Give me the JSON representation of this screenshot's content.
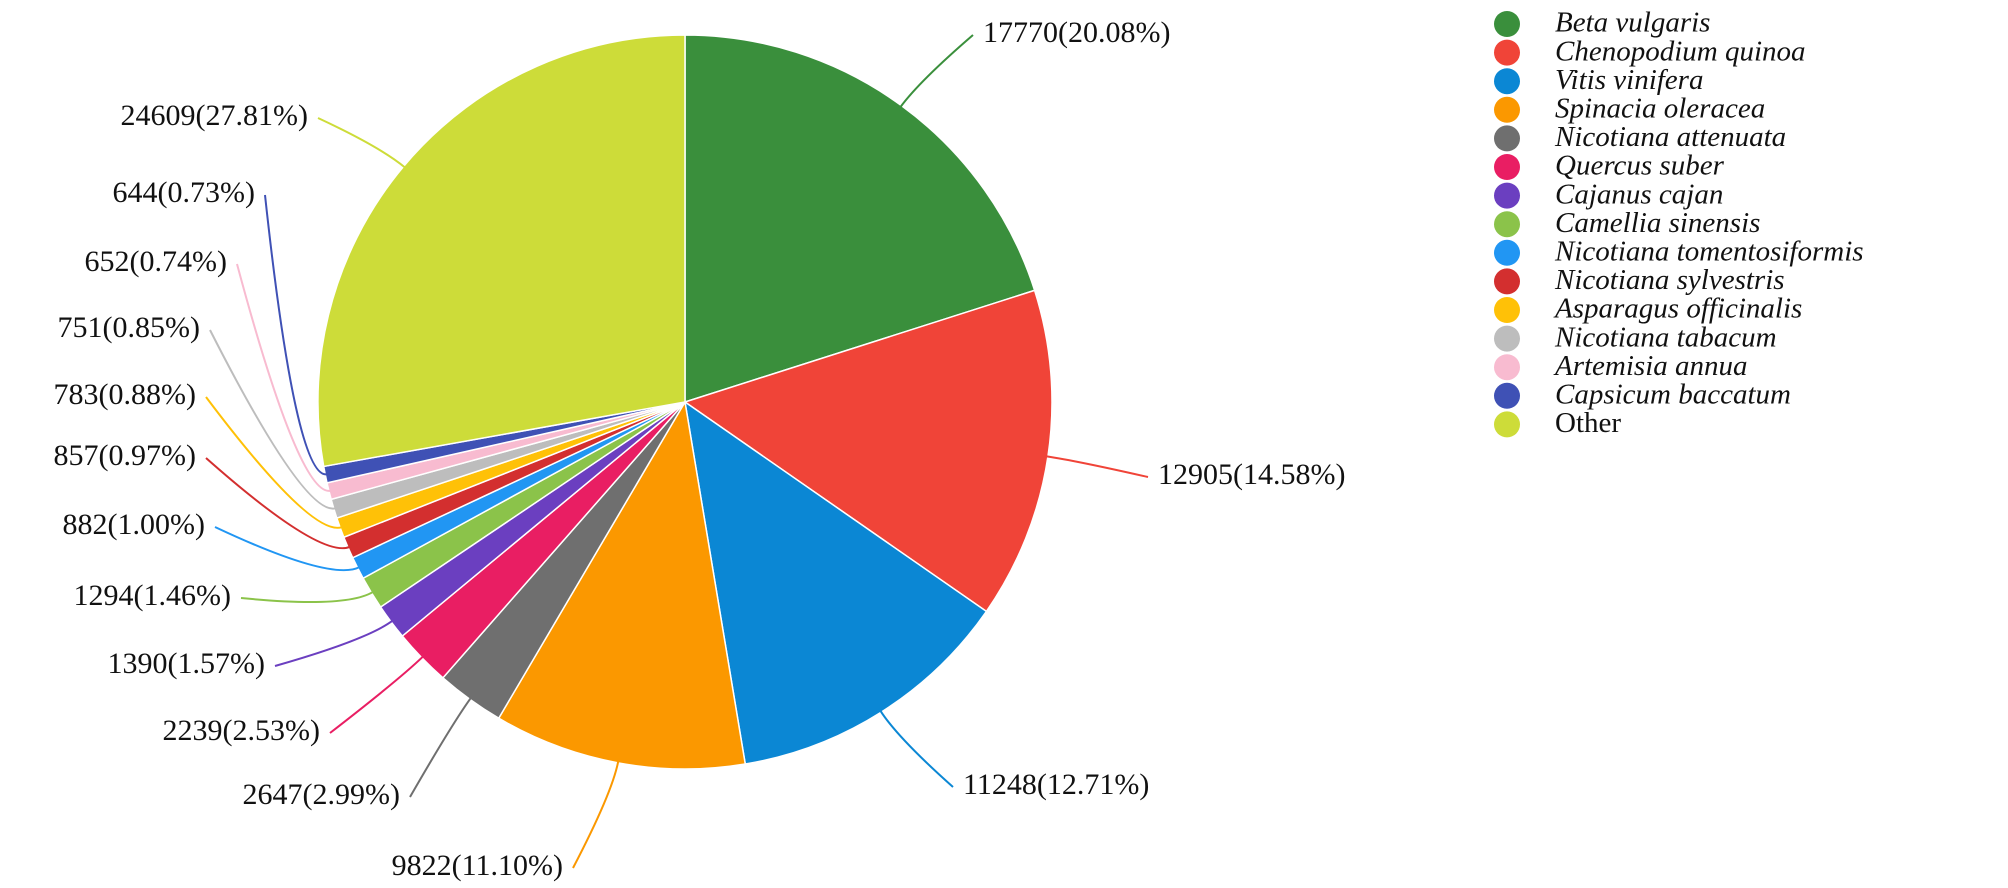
{
  "chart_data": {
    "type": "pie",
    "categories": [
      "Beta vulgaris",
      "Chenopodium quinoa",
      "Vitis vinifera",
      "Spinacia oleracea",
      "Nicotiana attenuata",
      "Quercus suber",
      "Cajanus cajan",
      "Camellia sinensis",
      "Nicotiana tomentosiformis",
      "Nicotiana sylvestris",
      "Asparagus officinalis",
      "Nicotiana tabacum",
      "Artemisia annua",
      "Capsicum baccatum",
      "Other"
    ],
    "values": [
      17770,
      12905,
      11248,
      9822,
      2647,
      2239,
      1390,
      1294,
      882,
      857,
      783,
      751,
      652,
      644,
      24609
    ],
    "value_labels": [
      "17770(20.08%)",
      "12905(14.58%)",
      "11248(12.71%)",
      "9822(11.10%)",
      "2647(2.99%)",
      "2239(2.53%)",
      "1390(1.57%)",
      "1294(1.46%)",
      "882(1.00%)",
      "857(0.97%)",
      "783(0.88%)",
      "751(0.85%)",
      "652(0.74%)",
      "644(0.73%)",
      "24609(27.81%)"
    ],
    "colors": [
      "#3a8f3c",
      "#f04438",
      "#0b87d4",
      "#fb9800",
      "#6f6f6f",
      "#e91e63",
      "#6b3fc0",
      "#8bc34a",
      "#2196f3",
      "#d32f2f",
      "#ffc107",
      "#bdbdbd",
      "#f8bbd0",
      "#3f51b5",
      "#cddc39"
    ]
  }
}
